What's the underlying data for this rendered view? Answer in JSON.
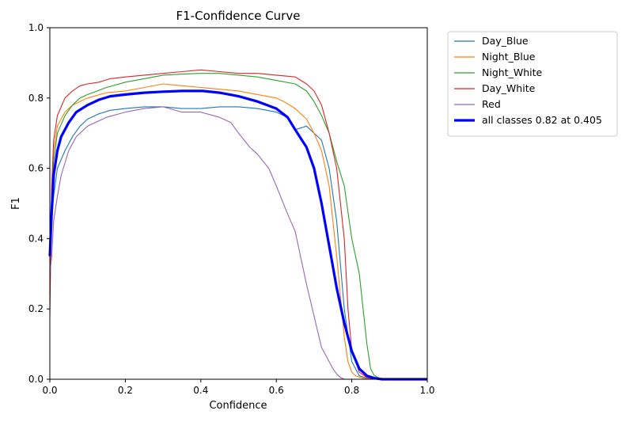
{
  "chart_data": {
    "type": "line",
    "title": "F1-Confidence Curve",
    "xlabel": "Confidence",
    "ylabel": "F1",
    "xlim": [
      0,
      1
    ],
    "ylim": [
      0,
      1
    ],
    "xticks": [
      "0.0",
      "0.2",
      "0.4",
      "0.6",
      "0.8",
      "1.0"
    ],
    "yticks": [
      "0.0",
      "0.2",
      "0.4",
      "0.6",
      "0.8",
      "1.0"
    ],
    "grid": false,
    "legend_position": "outside-right",
    "series": [
      {
        "name": "Day_Blue",
        "color": "#1f77b4",
        "x": [
          0,
          0.005,
          0.01,
          0.02,
          0.04,
          0.06,
          0.08,
          0.1,
          0.13,
          0.16,
          0.2,
          0.25,
          0.3,
          0.35,
          0.4,
          0.45,
          0.5,
          0.55,
          0.6,
          0.63,
          0.65,
          0.68,
          0.7,
          0.72,
          0.74,
          0.76,
          0.78,
          0.8,
          0.82,
          0.84,
          0.86,
          0.9,
          1.0
        ],
        "y": [
          0.3,
          0.45,
          0.52,
          0.6,
          0.65,
          0.69,
          0.72,
          0.74,
          0.755,
          0.765,
          0.77,
          0.775,
          0.775,
          0.77,
          0.77,
          0.775,
          0.775,
          0.77,
          0.76,
          0.745,
          0.71,
          0.72,
          0.7,
          0.68,
          0.6,
          0.45,
          0.2,
          0.05,
          0.01,
          0.003,
          0,
          0,
          0
        ]
      },
      {
        "name": "Night_Blue",
        "color": "#ff7f0e",
        "x": [
          0,
          0.005,
          0.01,
          0.02,
          0.04,
          0.06,
          0.08,
          0.1,
          0.15,
          0.2,
          0.25,
          0.3,
          0.35,
          0.4,
          0.45,
          0.5,
          0.55,
          0.6,
          0.62,
          0.65,
          0.68,
          0.7,
          0.72,
          0.74,
          0.76,
          0.78,
          0.79,
          0.8,
          0.81,
          0.83,
          0.86,
          1.0
        ],
        "y": [
          0.3,
          0.55,
          0.65,
          0.72,
          0.76,
          0.78,
          0.79,
          0.8,
          0.815,
          0.82,
          0.83,
          0.84,
          0.835,
          0.83,
          0.825,
          0.82,
          0.81,
          0.8,
          0.79,
          0.77,
          0.74,
          0.7,
          0.65,
          0.55,
          0.35,
          0.12,
          0.05,
          0.02,
          0.01,
          0.003,
          0,
          0
        ]
      },
      {
        "name": "Night_White",
        "color": "#2ca02c",
        "x": [
          0,
          0.005,
          0.01,
          0.02,
          0.04,
          0.06,
          0.08,
          0.1,
          0.15,
          0.2,
          0.25,
          0.3,
          0.35,
          0.4,
          0.45,
          0.5,
          0.55,
          0.6,
          0.65,
          0.68,
          0.7,
          0.72,
          0.74,
          0.76,
          0.78,
          0.8,
          0.81,
          0.82,
          0.83,
          0.84,
          0.85,
          0.86,
          0.88,
          1.0
        ],
        "y": [
          0.3,
          0.5,
          0.62,
          0.7,
          0.75,
          0.78,
          0.8,
          0.81,
          0.83,
          0.845,
          0.855,
          0.865,
          0.868,
          0.87,
          0.87,
          0.865,
          0.86,
          0.85,
          0.84,
          0.82,
          0.79,
          0.75,
          0.7,
          0.62,
          0.55,
          0.4,
          0.35,
          0.3,
          0.2,
          0.1,
          0.03,
          0.01,
          0,
          0
        ]
      },
      {
        "name": "Day_White",
        "color": "#d62728",
        "x": [
          0,
          0.005,
          0.01,
          0.02,
          0.04,
          0.06,
          0.08,
          0.1,
          0.13,
          0.16,
          0.2,
          0.25,
          0.3,
          0.35,
          0.4,
          0.45,
          0.5,
          0.55,
          0.6,
          0.65,
          0.68,
          0.7,
          0.72,
          0.74,
          0.76,
          0.77,
          0.78,
          0.79,
          0.8,
          0.82,
          0.84,
          0.86,
          1.0
        ],
        "y": [
          0.18,
          0.55,
          0.68,
          0.75,
          0.8,
          0.82,
          0.835,
          0.84,
          0.845,
          0.855,
          0.86,
          0.865,
          0.87,
          0.875,
          0.88,
          0.875,
          0.87,
          0.87,
          0.865,
          0.86,
          0.84,
          0.82,
          0.78,
          0.7,
          0.6,
          0.5,
          0.4,
          0.2,
          0.08,
          0.02,
          0.005,
          0,
          0
        ]
      },
      {
        "name": "Red",
        "color": "#9467bd",
        "x": [
          0,
          0.005,
          0.01,
          0.02,
          0.03,
          0.05,
          0.07,
          0.1,
          0.15,
          0.2,
          0.25,
          0.3,
          0.35,
          0.4,
          0.45,
          0.48,
          0.5,
          0.53,
          0.55,
          0.58,
          0.6,
          0.63,
          0.65,
          0.67,
          0.68,
          0.7,
          0.72,
          0.74,
          0.75,
          0.76,
          0.77,
          0.78,
          1.0
        ],
        "y": [
          0.3,
          0.35,
          0.45,
          0.52,
          0.58,
          0.65,
          0.69,
          0.72,
          0.745,
          0.76,
          0.77,
          0.775,
          0.76,
          0.76,
          0.745,
          0.73,
          0.7,
          0.66,
          0.64,
          0.6,
          0.55,
          0.47,
          0.42,
          0.32,
          0.27,
          0.18,
          0.09,
          0.05,
          0.03,
          0.015,
          0.005,
          0,
          0
        ]
      },
      {
        "name": "all classes 0.82 at 0.405",
        "color": "#0000ff",
        "x": [
          0,
          0.005,
          0.01,
          0.02,
          0.03,
          0.05,
          0.07,
          0.1,
          0.13,
          0.16,
          0.2,
          0.25,
          0.3,
          0.35,
          0.4,
          0.405,
          0.45,
          0.5,
          0.55,
          0.6,
          0.63,
          0.65,
          0.68,
          0.7,
          0.72,
          0.74,
          0.76,
          0.78,
          0.8,
          0.82,
          0.84,
          0.86,
          0.88,
          1.0
        ],
        "y": [
          0.35,
          0.48,
          0.58,
          0.65,
          0.69,
          0.73,
          0.76,
          0.78,
          0.795,
          0.805,
          0.81,
          0.815,
          0.818,
          0.82,
          0.82,
          0.82,
          0.815,
          0.805,
          0.79,
          0.77,
          0.745,
          0.71,
          0.66,
          0.6,
          0.5,
          0.38,
          0.26,
          0.16,
          0.08,
          0.03,
          0.01,
          0.003,
          0,
          0
        ]
      }
    ]
  }
}
